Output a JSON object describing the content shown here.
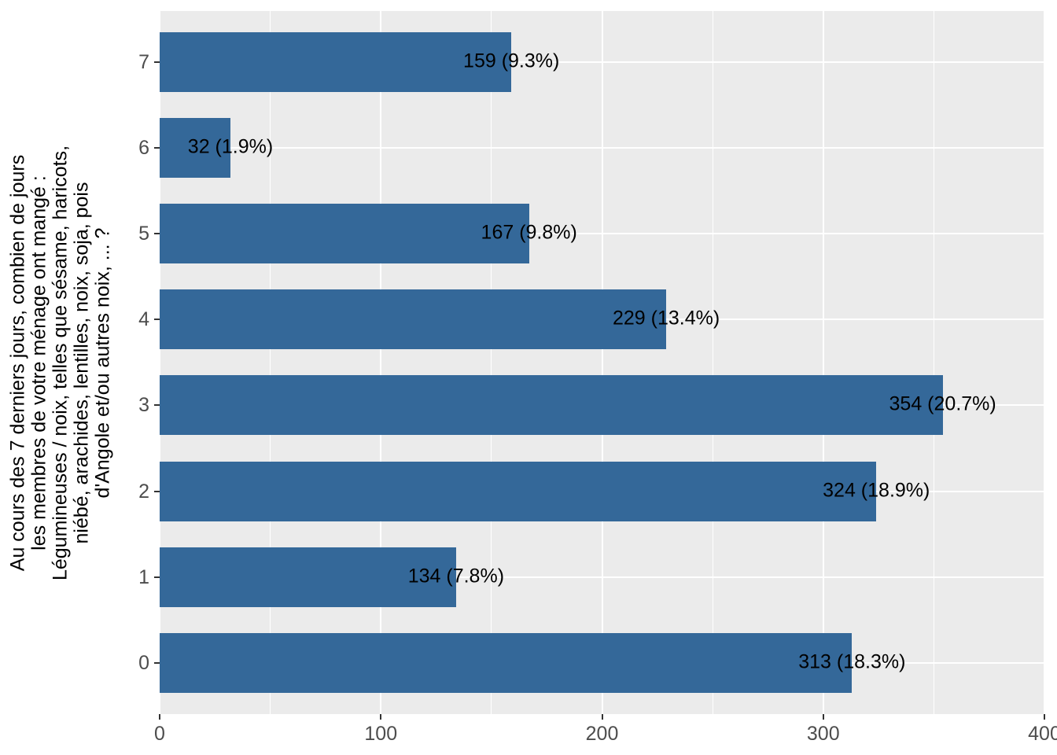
{
  "chart_data": {
    "type": "bar",
    "orientation": "horizontal",
    "title": "",
    "y_axis_title_lines": [
      "Au cours des 7 derniers jours, combien de jours",
      "les membres de votre ménage ont mangé :",
      "Légumineuses / noix, telles que sésame, haricots,",
      "niébé, arachides, lentilles, noix, soja, pois",
      "d'Angole et/ou autres noix, ... ?"
    ],
    "x_axis_title": "",
    "categories": [
      "7",
      "6",
      "5",
      "4",
      "3",
      "2",
      "1",
      "0"
    ],
    "values": [
      159,
      32,
      167,
      229,
      354,
      324,
      134,
      313
    ],
    "bar_labels": [
      "159 (9.3%)",
      "32 (1.9%)",
      "167 (9.8%)",
      "229 (13.4%)",
      "354 (20.7%)",
      "324 (18.9%)",
      "134 (7.8%)",
      "313 (18.3%)"
    ],
    "x_tick_labels": [
      "0",
      "100",
      "200",
      "300",
      "400"
    ],
    "x_tick_values": [
      0,
      100,
      200,
      300,
      400
    ],
    "x_minor_tick_values": [
      50,
      150,
      250,
      350
    ],
    "xlim": [
      0,
      400
    ],
    "legend": "none",
    "grid": "major and minor vertical white gridlines, major horizontal white gridlines on gray panel",
    "colors": {
      "bar": "#346899",
      "panel_background": "#EBEBEB",
      "gridline": "#FFFFFF",
      "tick_label": "#4D4D4D",
      "axis_title": "#000000",
      "bar_label": "#000000",
      "tick_mark": "#333333",
      "figure_background": "#FFFFFF"
    }
  }
}
